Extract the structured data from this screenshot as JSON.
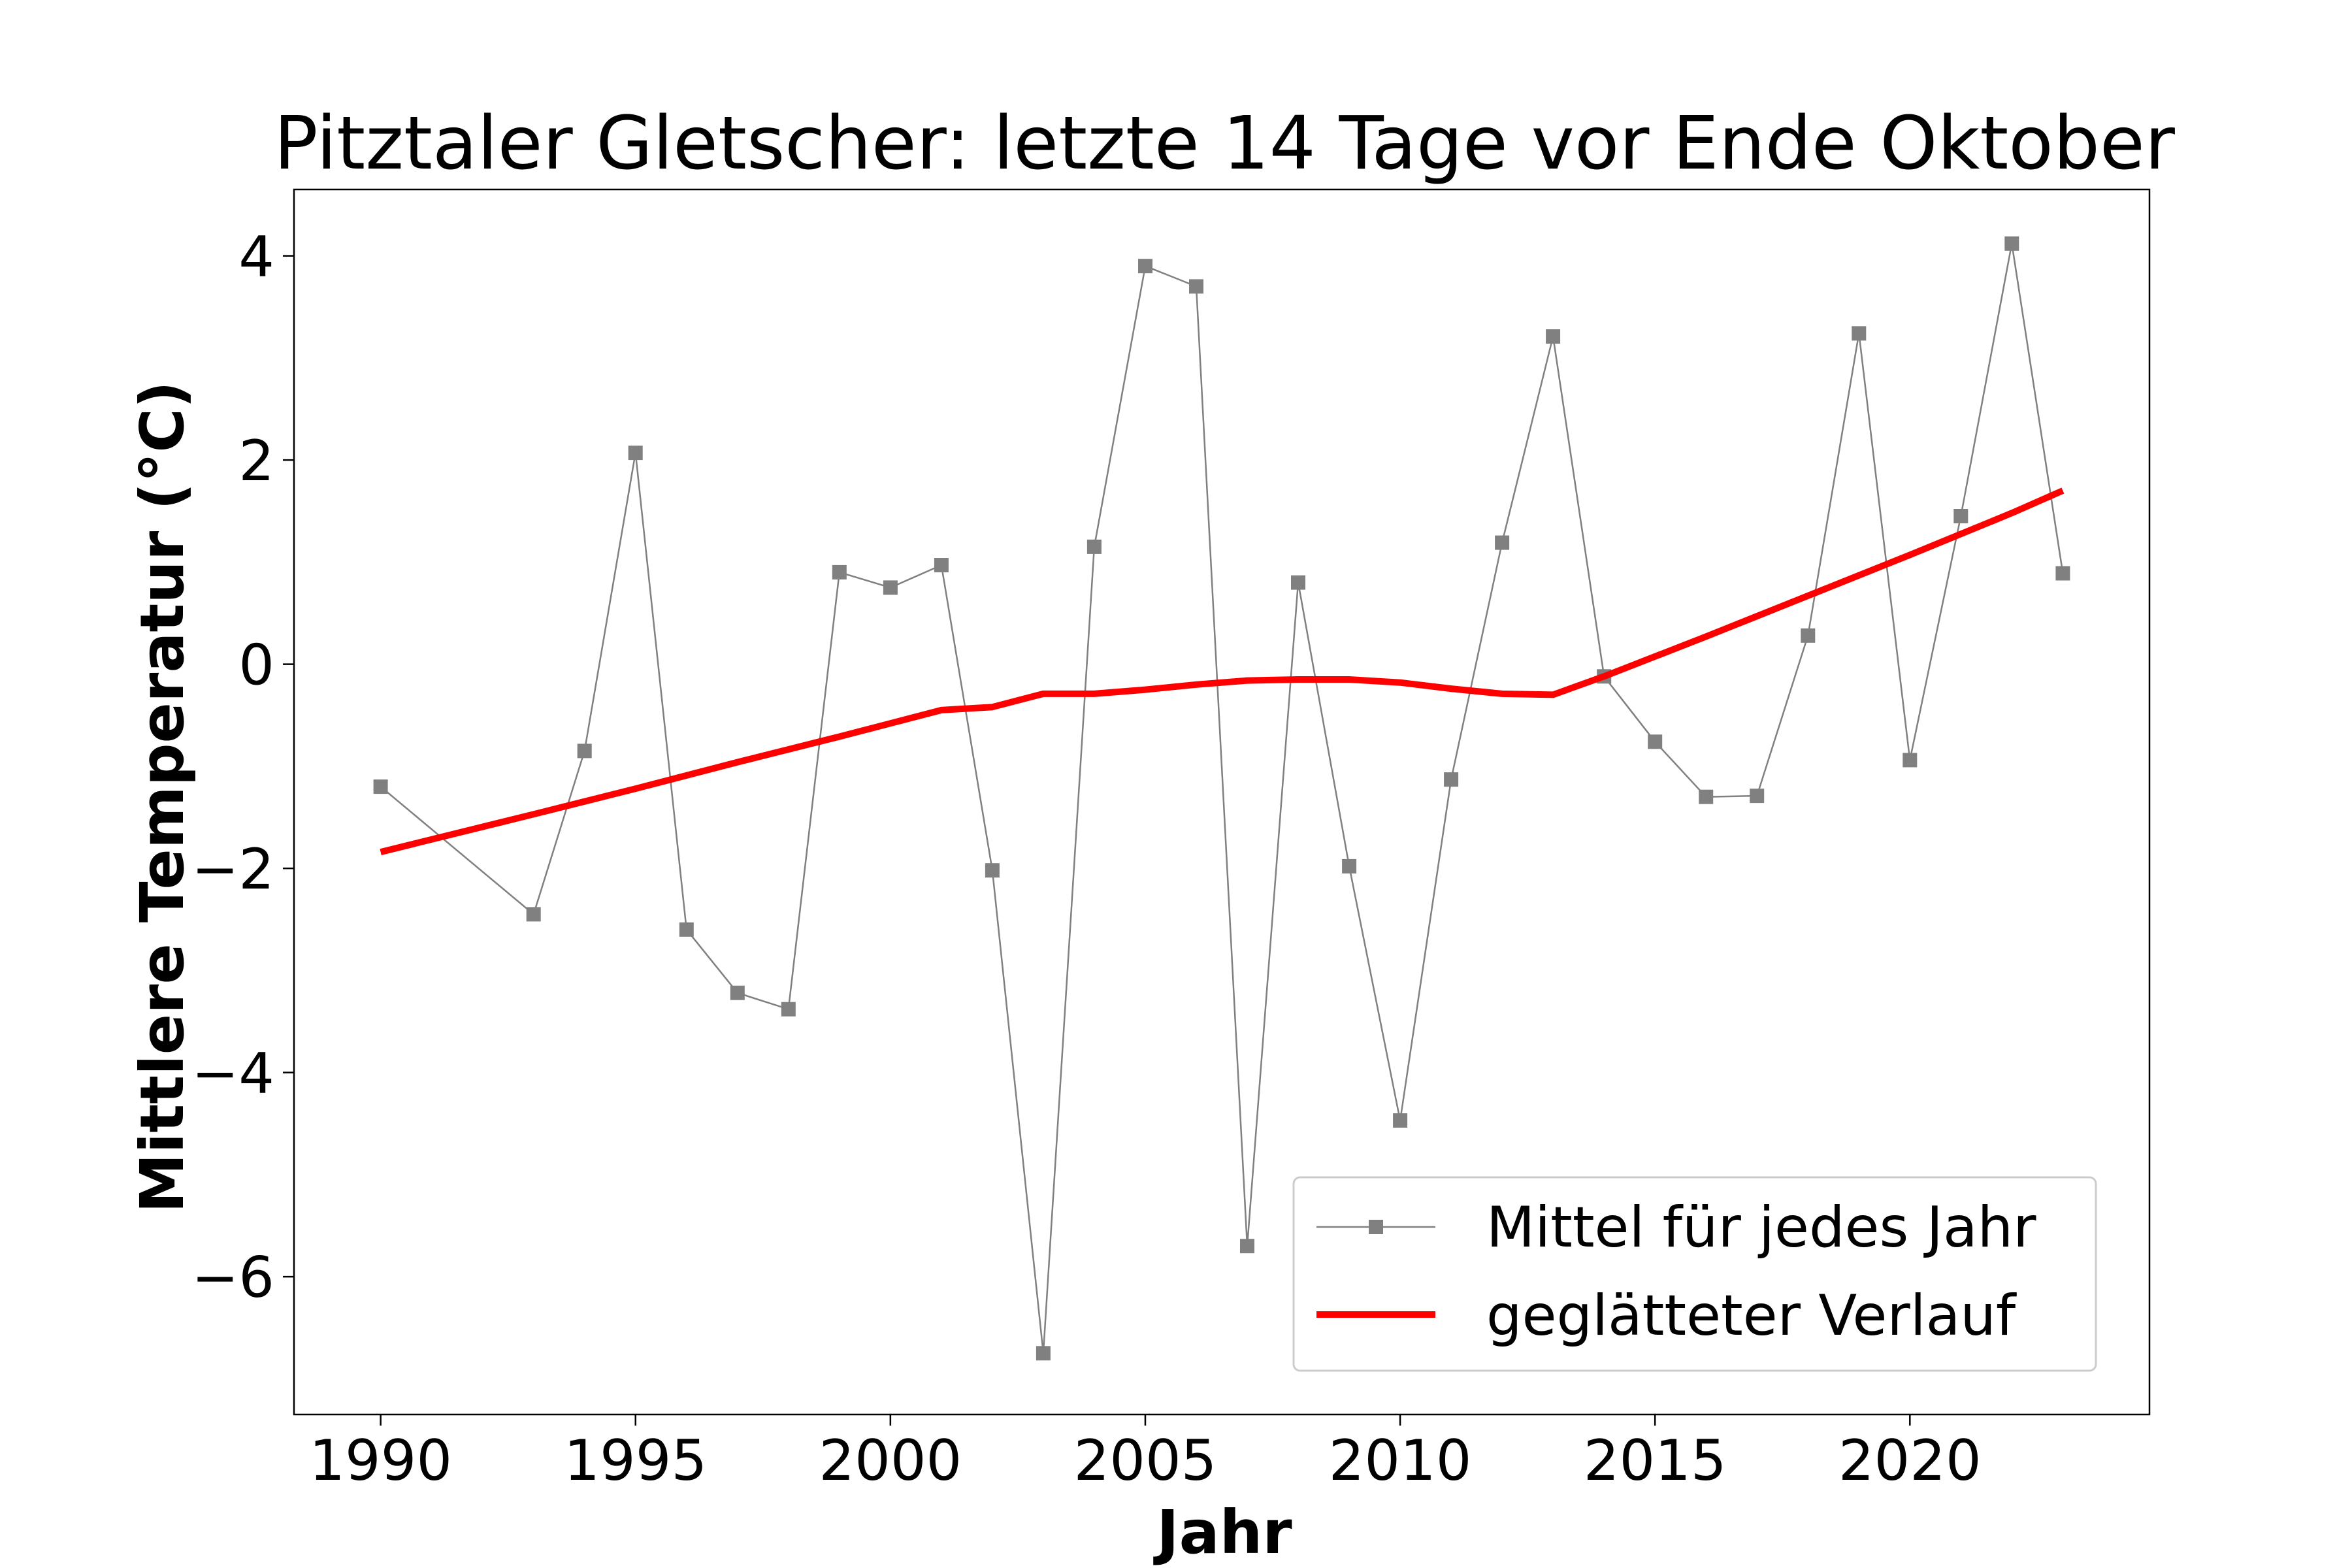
{
  "chart_data": {
    "type": "line",
    "title": "Pitztaler Gletscher: letzte 14 Tage vor Ende Oktober",
    "xlabel": "Jahr",
    "ylabel": "Mittlere Temperatur (°C)",
    "xlim": [
      1988.3,
      2024.7
    ],
    "ylim": [
      -7.35,
      4.65
    ],
    "x_ticks": [
      1990,
      1995,
      2000,
      2005,
      2010,
      2015,
      2020
    ],
    "x_tick_labels": [
      "1990",
      "1995",
      "2000",
      "2005",
      "2010",
      "2015",
      "2020"
    ],
    "y_ticks": [
      4,
      2,
      0,
      -2,
      -4,
      -6
    ],
    "y_tick_labels": [
      "4",
      "2",
      "0",
      "−2",
      "−4",
      "−6"
    ],
    "grid": false,
    "legend_position": "lower-right",
    "series": [
      {
        "name": "Mittel für jedes Jahr",
        "color": "#808080",
        "marker": "square",
        "points": [
          [
            1990,
            -1.2
          ],
          [
            1993,
            -2.45
          ],
          [
            1994,
            -0.85
          ],
          [
            1995,
            2.07
          ],
          [
            1996,
            -2.6
          ],
          [
            1997,
            -3.22
          ],
          [
            1998,
            -3.38
          ],
          [
            1999,
            0.9
          ],
          [
            2000,
            0.75
          ],
          [
            2001,
            0.97
          ],
          [
            2002,
            -2.02
          ],
          [
            2003,
            -6.75
          ],
          [
            2004,
            1.15
          ],
          [
            2005,
            3.9
          ],
          [
            2006,
            3.7
          ],
          [
            2007,
            -5.7
          ],
          [
            2008,
            0.8
          ],
          [
            2009,
            -1.98
          ],
          [
            2010,
            -4.47
          ],
          [
            2011,
            -1.13
          ],
          [
            2012,
            1.19
          ],
          [
            2013,
            3.21
          ],
          [
            2014,
            -0.12
          ],
          [
            2015,
            -0.76
          ],
          [
            2016,
            -1.3
          ],
          [
            2017,
            -1.29
          ],
          [
            2018,
            0.28
          ],
          [
            2019,
            3.24
          ],
          [
            2020,
            -0.94
          ],
          [
            2021,
            1.45
          ],
          [
            2022,
            4.12
          ],
          [
            2023,
            0.89
          ]
        ]
      },
      {
        "name": "geglätteter Verlauf",
        "color": "#ff0000",
        "marker": "none",
        "points": [
          [
            1990,
            -1.84
          ],
          [
            1993,
            -1.47
          ],
          [
            1995,
            -1.22
          ],
          [
            1997,
            -0.96
          ],
          [
            1999,
            -0.71
          ],
          [
            2000,
            -0.58
          ],
          [
            2001,
            -0.45
          ],
          [
            2002,
            -0.42
          ],
          [
            2003,
            -0.29
          ],
          [
            2004,
            -0.29
          ],
          [
            2005,
            -0.25
          ],
          [
            2006,
            -0.2
          ],
          [
            2007,
            -0.16
          ],
          [
            2008,
            -0.15
          ],
          [
            2009,
            -0.15
          ],
          [
            2010,
            -0.18
          ],
          [
            2011,
            -0.24
          ],
          [
            2012,
            -0.29
          ],
          [
            2013,
            -0.3
          ],
          [
            2014,
            -0.12
          ],
          [
            2016,
            0.27
          ],
          [
            2018,
            0.67
          ],
          [
            2020,
            1.07
          ],
          [
            2022,
            1.48
          ],
          [
            2023,
            1.7
          ]
        ]
      }
    ]
  }
}
